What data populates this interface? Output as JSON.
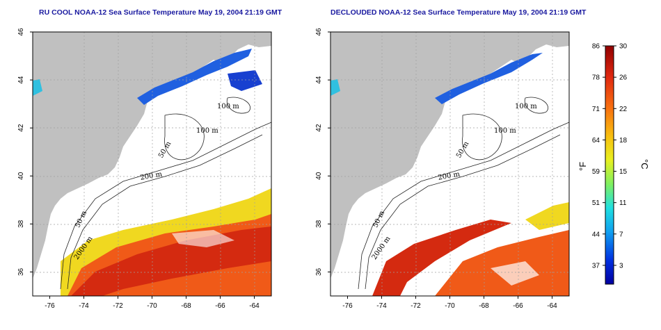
{
  "titles": {
    "left": "RU COOL NOAA-12 Sea Surface Temperature May 19, 2004 21:19 GMT",
    "right": "DECLOUDED NOAA-12 Sea Surface Temperature May 19, 2004 21:19 GMT"
  },
  "map": {
    "x_ticks": [
      "-76",
      "-74",
      "-72",
      "-70",
      "-68",
      "-66",
      "-64"
    ],
    "y_ticks": [
      "46",
      "44",
      "42",
      "40",
      "38",
      "36"
    ],
    "lon_range": [
      -77,
      -63
    ],
    "lat_range": [
      35,
      46
    ],
    "contours": {
      "c100_a": "100 m",
      "c100_b": "100 m",
      "c50_a": "50 m",
      "c200": "200 m",
      "c50_b": "50 m",
      "c2000": "2000 m"
    }
  },
  "colorbar": {
    "f_label": "°F",
    "c_label": "°C",
    "f_ticks": [
      "86",
      "78",
      "71",
      "64",
      "59",
      "51",
      "44",
      "37"
    ],
    "c_ticks": [
      "30",
      "26",
      "22",
      "18",
      "15",
      "11",
      "7",
      "3"
    ]
  },
  "colors": {
    "land": "#c0c0c0",
    "title": "#1a1aa0",
    "warm": "#d42a10",
    "orange": "#f05a18",
    "yellow": "#f0d820",
    "cold": "#1840d0"
  }
}
